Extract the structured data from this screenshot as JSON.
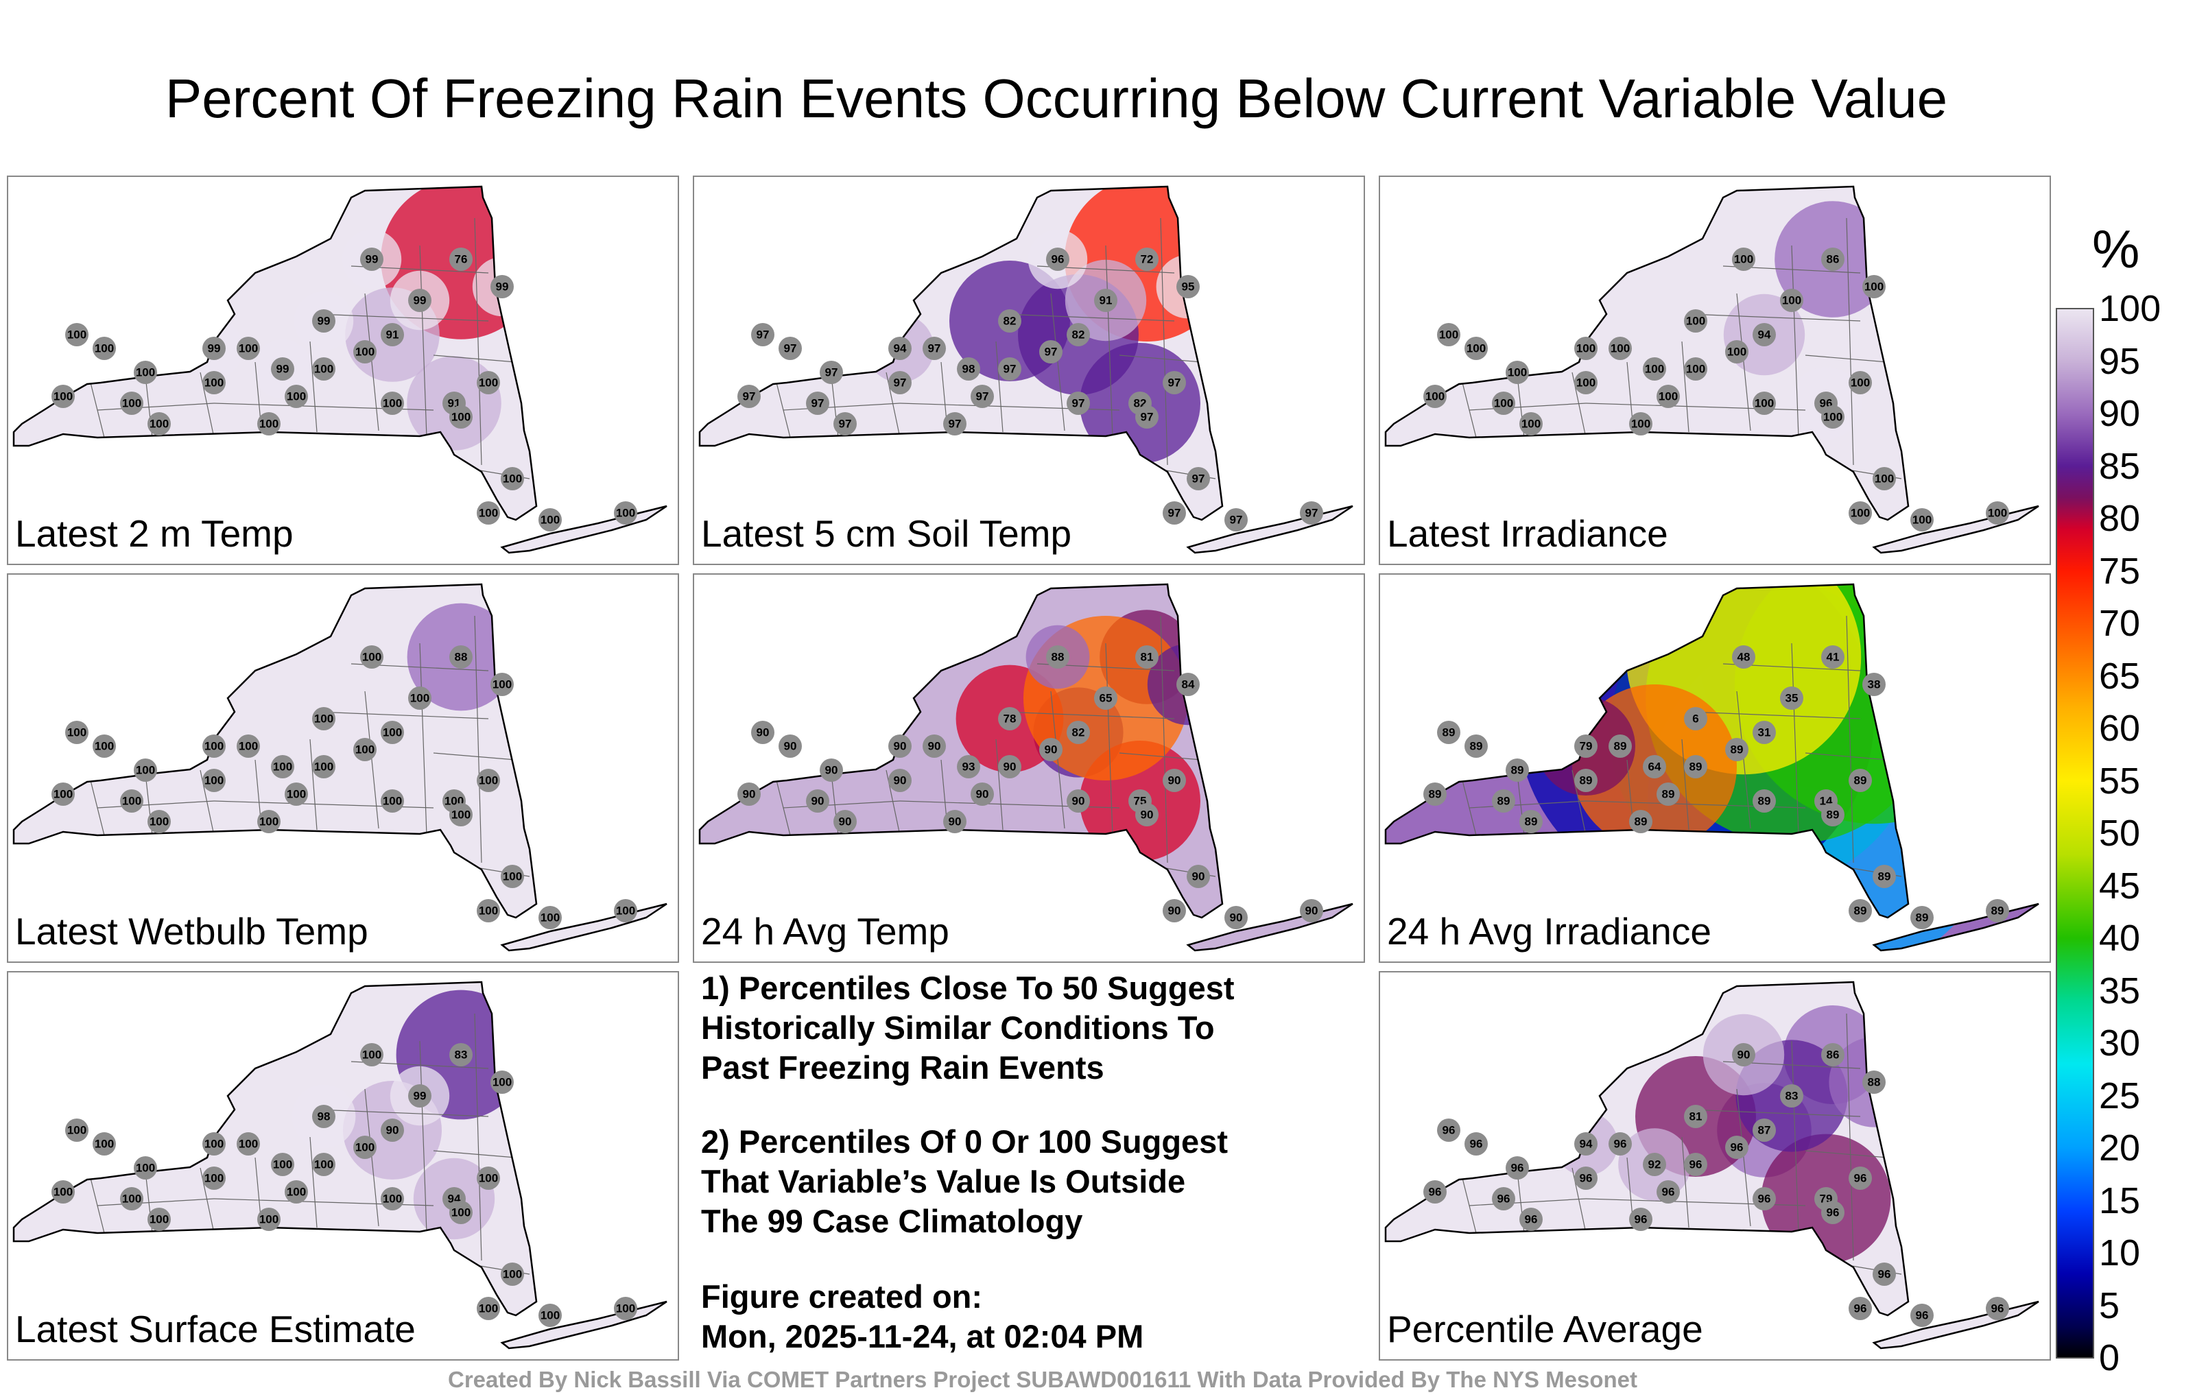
{
  "title": "Percent Of Freezing Rain Events Occurring Below Current Variable Value",
  "panels": [
    {
      "label": "Latest 2 m Temp",
      "base": 100,
      "stations": [
        76,
        91,
        91,
        99,
        99,
        99,
        99,
        99,
        99
      ]
    },
    {
      "label": "Latest 5 cm Soil Temp",
      "base": 97,
      "stations": [
        72,
        82,
        82,
        82,
        91,
        95,
        96,
        98,
        94
      ]
    },
    {
      "label": "Latest Irradiance",
      "base": 100,
      "stations": [
        86,
        94,
        96,
        100,
        100,
        100,
        100,
        100,
        100
      ]
    },
    {
      "label": "Latest Wetbulb Temp",
      "base": 100,
      "stations": [
        88,
        100,
        100,
        100,
        100,
        100,
        100,
        100,
        100
      ]
    },
    {
      "label": "24 h Avg Temp",
      "base": 90,
      "stations": [
        81,
        82,
        75,
        78,
        65,
        84,
        88,
        93,
        90
      ]
    },
    {
      "label": "24 h Avg Irradiance",
      "base": 89,
      "stations": [
        41,
        31,
        14,
        6,
        35,
        38,
        48,
        64,
        79
      ]
    },
    {
      "label": "Latest Surface Estimate",
      "base": 100,
      "stations": [
        83,
        90,
        94,
        98,
        99,
        100,
        100,
        100,
        100
      ]
    },
    {
      "label": "Percentile Average",
      "base": 96,
      "stations": [
        86,
        87,
        79,
        81,
        83,
        88,
        90,
        92,
        94
      ]
    }
  ],
  "notes": {
    "line1": "1) Percentiles Close To 50 Suggest",
    "line2": "Historically Similar Conditions To",
    "line3": "Past Freezing Rain Events",
    "line4": "2) Percentiles Of 0 Or 100 Suggest",
    "line5": "That Variable’s Value Is Outside",
    "line6": "The 99 Case Climatology",
    "line7": "Figure created on:",
    "line8": "Mon, 2025-11-24, at 02:04 PM"
  },
  "credit": "Created By Nick Bassill Via COMET Partners Project SUBAWD001611 With Data Provided By The NYS Mesonet",
  "colorbar": {
    "unit": "%",
    "ticks": [
      "100",
      "95",
      "90",
      "85",
      "80",
      "75",
      "70",
      "65",
      "60",
      "55",
      "50",
      "45",
      "40",
      "35",
      "30",
      "25",
      "20",
      "15",
      "10",
      "5",
      "0"
    ]
  }
}
